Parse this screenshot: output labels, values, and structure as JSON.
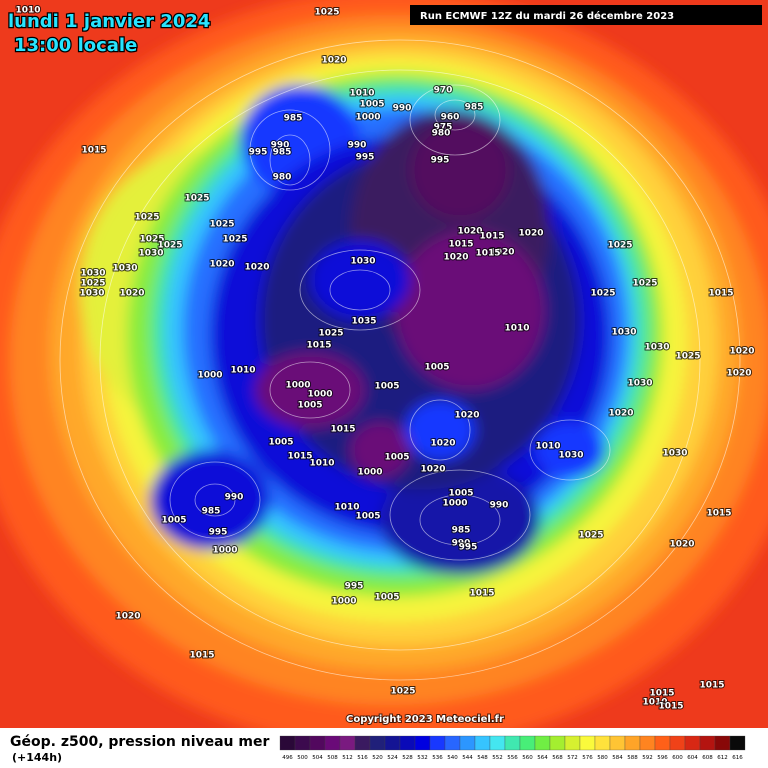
{
  "header": {
    "date": "lundi 1 janvier 2024",
    "time": "13:00 locale",
    "run": "Run ECMWF 12Z du mardi 26 décembre 2023"
  },
  "copyright": "Copyright 2023 Meteociel.fr",
  "legend": {
    "title": "Géop. z500, pression niveau mer",
    "lead": "(+144h)",
    "ticks": [
      496,
      500,
      504,
      508,
      512,
      516,
      520,
      524,
      528,
      532,
      536,
      540,
      544,
      548,
      552,
      556,
      560,
      564,
      568,
      572,
      576,
      580,
      584,
      588,
      592,
      596,
      600,
      604,
      608,
      612,
      616
    ],
    "colors": [
      "#2a0838",
      "#3c0a4e",
      "#52085e",
      "#6a0a78",
      "#7a1a80",
      "#3a1a60",
      "#20207a",
      "#141494",
      "#0a0ab8",
      "#0000e0",
      "#1838ff",
      "#2866ff",
      "#2c96ff",
      "#36c4ff",
      "#44e6f0",
      "#40e8b0",
      "#48ee78",
      "#70ee44",
      "#a4ee30",
      "#d6f030",
      "#fafa3c",
      "#ffe23c",
      "#ffc434",
      "#ffa428",
      "#ff8420",
      "#ff6018",
      "#f04218",
      "#d82814",
      "#b41410",
      "#880808",
      "#0a0a0a"
    ]
  },
  "isobar_labels": [
    1010,
    1025,
    1020,
    1010,
    1005,
    990,
    1000,
    985,
    970,
    985,
    960,
    975,
    980,
    990,
    995,
    990,
    995,
    985,
    980,
    995,
    1015,
    1025,
    1025,
    1025,
    1025,
    1025,
    1025,
    1030,
    1020,
    1020,
    1030,
    1020,
    1015,
    1015,
    1020,
    1020,
    1015,
    1020,
    1025,
    1025,
    1025,
    1015,
    1030,
    1030,
    1025,
    1030,
    1020,
    1035,
    1010,
    1030,
    1030,
    1025,
    1025,
    1015,
    1020,
    1020,
    1000,
    1010,
    1000,
    1000,
    1005,
    1005,
    1005,
    1030,
    1020,
    1020,
    1015,
    1020,
    1005,
    1010,
    1030,
    1005,
    1020,
    1000,
    1015,
    1010,
    1030,
    990,
    985,
    1005,
    995,
    1000,
    1010,
    1005,
    1005,
    1000,
    990,
    985,
    990,
    995,
    1025,
    1015,
    1020,
    995,
    1000,
    1005,
    1015,
    1020,
    1015,
    1025,
    1015,
    1015,
    1010,
    1015
  ]
}
